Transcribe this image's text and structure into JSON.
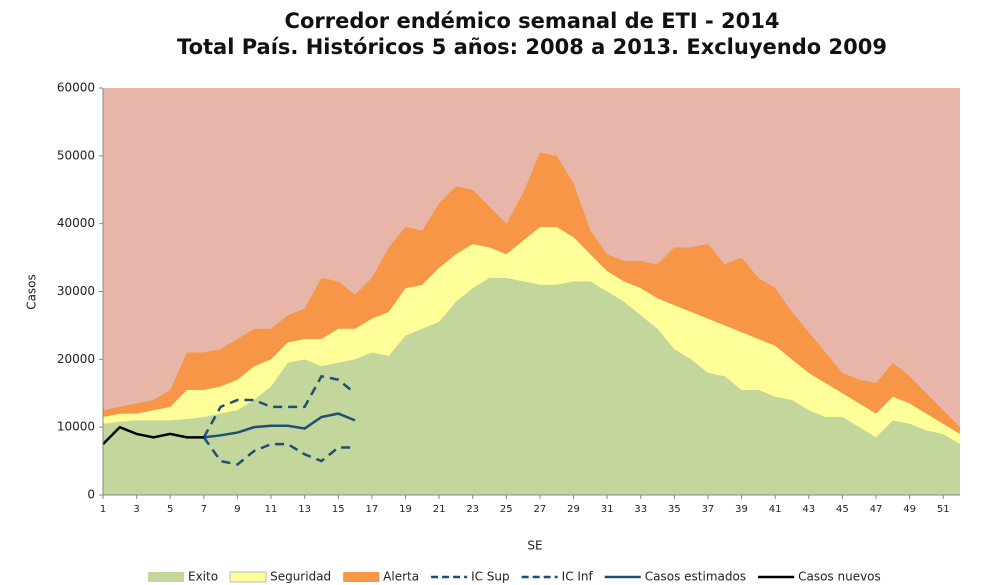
{
  "chart_data": {
    "type": "area",
    "title": [
      "Corredor endémico semanal de ETI - 2014",
      "Total País. Históricos 5 años: 2008 a 2013. Excluyendo 2009"
    ],
    "xlabel": "SE",
    "ylabel": "Casos",
    "x": [
      1,
      2,
      3,
      4,
      5,
      6,
      7,
      8,
      9,
      10,
      11,
      12,
      13,
      14,
      15,
      16,
      17,
      18,
      19,
      20,
      21,
      22,
      23,
      24,
      25,
      26,
      27,
      28,
      29,
      30,
      31,
      32,
      33,
      34,
      35,
      36,
      37,
      38,
      39,
      40,
      41,
      42,
      43,
      44,
      45,
      46,
      47,
      48,
      49,
      50,
      51,
      52
    ],
    "xlim": [
      1,
      52
    ],
    "xticks": [
      1,
      3,
      5,
      7,
      9,
      11,
      13,
      15,
      17,
      19,
      21,
      23,
      25,
      27,
      29,
      31,
      33,
      35,
      37,
      39,
      41,
      43,
      45,
      47,
      49,
      51
    ],
    "ylim": [
      0,
      60000
    ],
    "yticks": [
      0,
      10000,
      20000,
      30000,
      40000,
      50000,
      60000
    ],
    "stacked": true,
    "plot_background": "#e8b6a8",
    "series": [
      {
        "name": "Exito",
        "kind": "area",
        "color": "#c3d69b",
        "values": [
          10500,
          10800,
          11000,
          11000,
          11000,
          11200,
          11500,
          12000,
          12500,
          14000,
          16000,
          19500,
          20000,
          19000,
          19500,
          20000,
          21000,
          20500,
          23500,
          24500,
          25500,
          28500,
          30500,
          32000,
          32000,
          31500,
          31000,
          31000,
          31500,
          31500,
          30000,
          28500,
          26500,
          24500,
          21500,
          20000,
          18000,
          17500,
          15500,
          15500,
          14500,
          14000,
          12500,
          11500,
          11500,
          10000,
          8500,
          11000,
          10500,
          9500,
          9000,
          7500
        ]
      },
      {
        "name": "Seguridad",
        "kind": "area",
        "color": "#ffff99",
        "values": [
          1000,
          1200,
          1000,
          1500,
          2000,
          4300,
          4000,
          4000,
          4500,
          5000,
          4000,
          3000,
          3000,
          4000,
          5000,
          4500,
          5000,
          6500,
          7000,
          6500,
          8000,
          7000,
          6500,
          4500,
          3500,
          6000,
          8500,
          8500,
          6500,
          4000,
          3000,
          3000,
          4000,
          4500,
          6500,
          7000,
          8000,
          7500,
          8500,
          7500,
          7500,
          6000,
          5500,
          5000,
          3500,
          3500,
          3500,
          3500,
          3000,
          2500,
          1500,
          1500
        ]
      },
      {
        "name": "Alerta",
        "kind": "area",
        "color": "#f79646",
        "values": [
          1000,
          1000,
          1500,
          1500,
          2500,
          5500,
          5500,
          5500,
          6000,
          5500,
          4500,
          4000,
          4500,
          9000,
          7000,
          5000,
          6000,
          9500,
          9000,
          8000,
          9500,
          10000,
          8000,
          6000,
          4500,
          7000,
          11000,
          10500,
          8000,
          3500,
          2500,
          3000,
          4000,
          5000,
          8500,
          9500,
          11000,
          9000,
          11000,
          9000,
          8500,
          7000,
          6000,
          4500,
          3000,
          3500,
          4500,
          5000,
          4000,
          3000,
          2000,
          1000
        ]
      },
      {
        "name": "IC Sup",
        "kind": "line",
        "line_style": "dashed",
        "color": "#1f4e79",
        "values": [
          null,
          null,
          null,
          null,
          null,
          null,
          8500,
          13000,
          14000,
          14000,
          13000,
          13000,
          13000,
          17500,
          17000,
          15000,
          null,
          null,
          null,
          null,
          null,
          null,
          null,
          null,
          null,
          null,
          null,
          null,
          null,
          null,
          null,
          null,
          null,
          null,
          null,
          null,
          null,
          null,
          null,
          null,
          null,
          null,
          null,
          null,
          null,
          null,
          null,
          null,
          null,
          null,
          null,
          null
        ]
      },
      {
        "name": "IC Inf",
        "kind": "line",
        "line_style": "dashed",
        "color": "#1f4e79",
        "values": [
          null,
          null,
          null,
          null,
          null,
          null,
          8500,
          5000,
          4500,
          6500,
          7500,
          7500,
          6000,
          5000,
          7000,
          7000,
          null,
          null,
          null,
          null,
          null,
          null,
          null,
          null,
          null,
          null,
          null,
          null,
          null,
          null,
          null,
          null,
          null,
          null,
          null,
          null,
          null,
          null,
          null,
          null,
          null,
          null,
          null,
          null,
          null,
          null,
          null,
          null,
          null,
          null,
          null,
          null
        ]
      },
      {
        "name": "Casos estimados",
        "kind": "line",
        "line_style": "solid",
        "color": "#1f4e79",
        "values": [
          null,
          null,
          null,
          null,
          null,
          null,
          8500,
          8800,
          9200,
          10000,
          10200,
          10200,
          9800,
          11500,
          12000,
          11000,
          null,
          null,
          null,
          null,
          null,
          null,
          null,
          null,
          null,
          null,
          null,
          null,
          null,
          null,
          null,
          null,
          null,
          null,
          null,
          null,
          null,
          null,
          null,
          null,
          null,
          null,
          null,
          null,
          null,
          null,
          null,
          null,
          null,
          null,
          null,
          null
        ]
      },
      {
        "name": "Casos nuevos",
        "kind": "line",
        "line_style": "solid",
        "color": "#000000",
        "values": [
          7500,
          10000,
          9000,
          8500,
          9000,
          8500,
          8500,
          null,
          null,
          null,
          null,
          null,
          null,
          null,
          null,
          null,
          null,
          null,
          null,
          null,
          null,
          null,
          null,
          null,
          null,
          null,
          null,
          null,
          null,
          null,
          null,
          null,
          null,
          null,
          null,
          null,
          null,
          null,
          null,
          null,
          null,
          null,
          null,
          null,
          null,
          null,
          null,
          null,
          null,
          null,
          null,
          null
        ]
      }
    ]
  }
}
